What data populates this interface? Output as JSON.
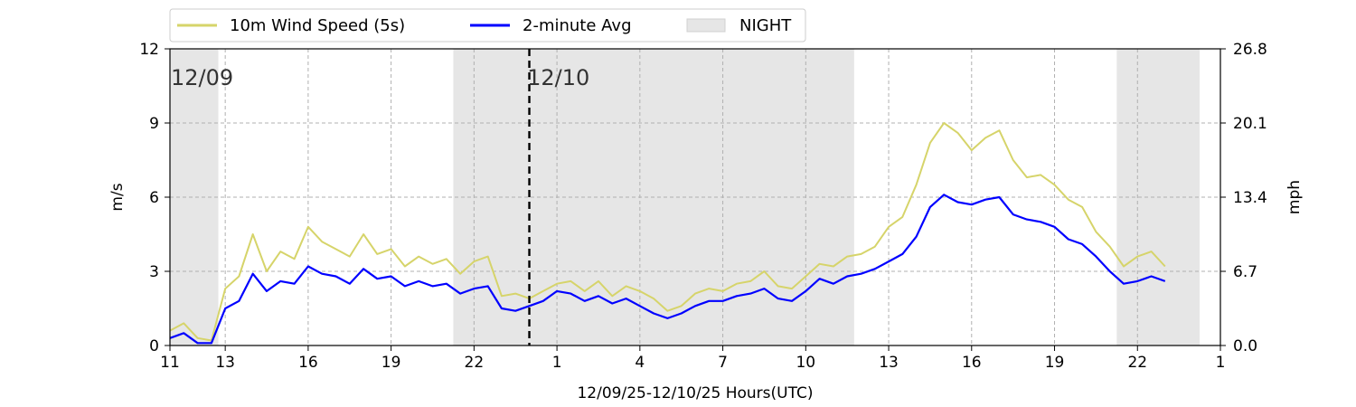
{
  "chart_data": {
    "type": "line",
    "xlabel": "12/09/25-12/10/25  Hours(UTC)",
    "ylabel": "m/s",
    "ylabel_right": "mph",
    "x_unit": "hours UTC",
    "xlim": [
      "12/09 11:00",
      "12/11 01:00"
    ],
    "ylim": [
      0,
      12
    ],
    "ylim_right": [
      0.0,
      26.8
    ],
    "x_ticks": [
      {
        "time": "12/09 11:00",
        "label": "11"
      },
      {
        "time": "12/09 13:00",
        "label": "13"
      },
      {
        "time": "12/09 16:00",
        "label": "16"
      },
      {
        "time": "12/09 19:00",
        "label": "19"
      },
      {
        "time": "12/09 22:00",
        "label": "22"
      },
      {
        "time": "12/10 01:00",
        "label": "1"
      },
      {
        "time": "12/10 04:00",
        "label": "4"
      },
      {
        "time": "12/10 07:00",
        "label": "7"
      },
      {
        "time": "12/10 10:00",
        "label": "10"
      },
      {
        "time": "12/10 13:00",
        "label": "13"
      },
      {
        "time": "12/10 16:00",
        "label": "16"
      },
      {
        "time": "12/10 19:00",
        "label": "19"
      },
      {
        "time": "12/10 22:00",
        "label": "22"
      },
      {
        "time": "12/11 01:00",
        "label": "1"
      }
    ],
    "y_ticks": [
      {
        "value": 0,
        "label": "0"
      },
      {
        "value": 3,
        "label": "3"
      },
      {
        "value": 6,
        "label": "6"
      },
      {
        "value": 9,
        "label": "9"
      },
      {
        "value": 12,
        "label": "12"
      }
    ],
    "y_ticks_right": [
      {
        "value": 0,
        "label": "0.0"
      },
      {
        "value": 3,
        "label": "6.7"
      },
      {
        "value": 6,
        "label": "13.4"
      },
      {
        "value": 9,
        "label": "20.1"
      },
      {
        "value": 12,
        "label": "26.8"
      }
    ],
    "grid": true,
    "legend_position": "top",
    "legend": [
      {
        "label": "10m Wind Speed (5s)",
        "color": "#d6d46a"
      },
      {
        "label": "2-minute Avg",
        "color": "#0000ff"
      },
      {
        "label": "NIGHT",
        "color": "#e6e6e6"
      }
    ],
    "night_periods": [
      {
        "start": "12/09 11:00",
        "end": "12/09 12:45"
      },
      {
        "start": "12/09 21:15",
        "end": "12/10 11:45"
      },
      {
        "start": "12/10 21:15",
        "end": "12/11 00:15"
      }
    ],
    "day_boundary": {
      "time": "12/10 00:00"
    },
    "date_labels": [
      {
        "time": "12/09 11:00",
        "text": "12/09"
      },
      {
        "time": "12/10 01:00",
        "text": "12/10"
      }
    ],
    "series": [
      {
        "name": "10m Wind Speed (5s)",
        "color": "#d6d46a",
        "x": [
          "12/09 11:00",
          "12/09 11:30",
          "12/09 12:00",
          "12/09 12:30",
          "12/09 13:00",
          "12/09 13:30",
          "12/09 14:00",
          "12/09 14:30",
          "12/09 15:00",
          "12/09 15:30",
          "12/09 16:00",
          "12/09 16:30",
          "12/09 17:00",
          "12/09 17:30",
          "12/09 18:00",
          "12/09 18:30",
          "12/09 19:00",
          "12/09 19:30",
          "12/09 20:00",
          "12/09 20:30",
          "12/09 21:00",
          "12/09 21:30",
          "12/09 22:00",
          "12/09 22:30",
          "12/09 23:00",
          "12/09 23:30",
          "12/10 00:00",
          "12/10 00:30",
          "12/10 01:00",
          "12/10 01:30",
          "12/10 02:00",
          "12/10 02:30",
          "12/10 03:00",
          "12/10 03:30",
          "12/10 04:00",
          "12/10 04:30",
          "12/10 05:00",
          "12/10 05:30",
          "12/10 06:00",
          "12/10 06:30",
          "12/10 07:00",
          "12/10 07:30",
          "12/10 08:00",
          "12/10 08:30",
          "12/10 09:00",
          "12/10 09:30",
          "12/10 10:00",
          "12/10 10:30",
          "12/10 11:00",
          "12/10 11:30",
          "12/10 12:00",
          "12/10 12:30",
          "12/10 13:00",
          "12/10 13:30",
          "12/10 14:00",
          "12/10 14:30",
          "12/10 15:00",
          "12/10 15:30",
          "12/10 16:00",
          "12/10 16:30",
          "12/10 17:00",
          "12/10 17:30",
          "12/10 18:00",
          "12/10 18:30",
          "12/10 19:00",
          "12/10 19:30",
          "12/10 20:00",
          "12/10 20:30",
          "12/10 21:00",
          "12/10 21:30",
          "12/10 22:00",
          "12/10 22:30",
          "12/10 23:00"
        ],
        "values": [
          0.6,
          0.9,
          0.3,
          0.2,
          2.3,
          2.8,
          4.5,
          3.0,
          3.8,
          3.5,
          4.8,
          4.2,
          3.9,
          3.6,
          4.5,
          3.7,
          3.9,
          3.2,
          3.6,
          3.3,
          3.5,
          2.9,
          3.4,
          3.6,
          2.0,
          2.1,
          1.9,
          2.2,
          2.5,
          2.6,
          2.2,
          2.6,
          2.0,
          2.4,
          2.2,
          1.9,
          1.4,
          1.6,
          2.1,
          2.3,
          2.2,
          2.5,
          2.6,
          3.0,
          2.4,
          2.3,
          2.8,
          3.3,
          3.2,
          3.6,
          3.7,
          4.0,
          4.8,
          5.2,
          6.5,
          8.2,
          9.0,
          8.6,
          7.9,
          8.4,
          8.7,
          7.5,
          6.8,
          6.9,
          6.5,
          5.9,
          5.6,
          4.6,
          4.0,
          3.2,
          3.6,
          3.8,
          3.2
        ]
      },
      {
        "name": "2-minute Avg",
        "color": "#0000ff",
        "x": [
          "12/09 11:00",
          "12/09 11:30",
          "12/09 12:00",
          "12/09 12:30",
          "12/09 13:00",
          "12/09 13:30",
          "12/09 14:00",
          "12/09 14:30",
          "12/09 15:00",
          "12/09 15:30",
          "12/09 16:00",
          "12/09 16:30",
          "12/09 17:00",
          "12/09 17:30",
          "12/09 18:00",
          "12/09 18:30",
          "12/09 19:00",
          "12/09 19:30",
          "12/09 20:00",
          "12/09 20:30",
          "12/09 21:00",
          "12/09 21:30",
          "12/09 22:00",
          "12/09 22:30",
          "12/09 23:00",
          "12/09 23:30",
          "12/10 00:00",
          "12/10 00:30",
          "12/10 01:00",
          "12/10 01:30",
          "12/10 02:00",
          "12/10 02:30",
          "12/10 03:00",
          "12/10 03:30",
          "12/10 04:00",
          "12/10 04:30",
          "12/10 05:00",
          "12/10 05:30",
          "12/10 06:00",
          "12/10 06:30",
          "12/10 07:00",
          "12/10 07:30",
          "12/10 08:00",
          "12/10 08:30",
          "12/10 09:00",
          "12/10 09:30",
          "12/10 10:00",
          "12/10 10:30",
          "12/10 11:00",
          "12/10 11:30",
          "12/10 12:00",
          "12/10 12:30",
          "12/10 13:00",
          "12/10 13:30",
          "12/10 14:00",
          "12/10 14:30",
          "12/10 15:00",
          "12/10 15:30",
          "12/10 16:00",
          "12/10 16:30",
          "12/10 17:00",
          "12/10 17:30",
          "12/10 18:00",
          "12/10 18:30",
          "12/10 19:00",
          "12/10 19:30",
          "12/10 20:00",
          "12/10 20:30",
          "12/10 21:00",
          "12/10 21:30",
          "12/10 22:00",
          "12/10 22:30",
          "12/10 23:00"
        ],
        "values": [
          0.3,
          0.5,
          0.1,
          0.1,
          1.5,
          1.8,
          2.9,
          2.2,
          2.6,
          2.5,
          3.2,
          2.9,
          2.8,
          2.5,
          3.1,
          2.7,
          2.8,
          2.4,
          2.6,
          2.4,
          2.5,
          2.1,
          2.3,
          2.4,
          1.5,
          1.4,
          1.6,
          1.8,
          2.2,
          2.1,
          1.8,
          2.0,
          1.7,
          1.9,
          1.6,
          1.3,
          1.1,
          1.3,
          1.6,
          1.8,
          1.8,
          2.0,
          2.1,
          2.3,
          1.9,
          1.8,
          2.2,
          2.7,
          2.5,
          2.8,
          2.9,
          3.1,
          3.4,
          3.7,
          4.4,
          5.6,
          6.1,
          5.8,
          5.7,
          5.9,
          6.0,
          5.3,
          5.1,
          5.0,
          4.8,
          4.3,
          4.1,
          3.6,
          3.0,
          2.5,
          2.6,
          2.8,
          2.6
        ]
      }
    ]
  }
}
